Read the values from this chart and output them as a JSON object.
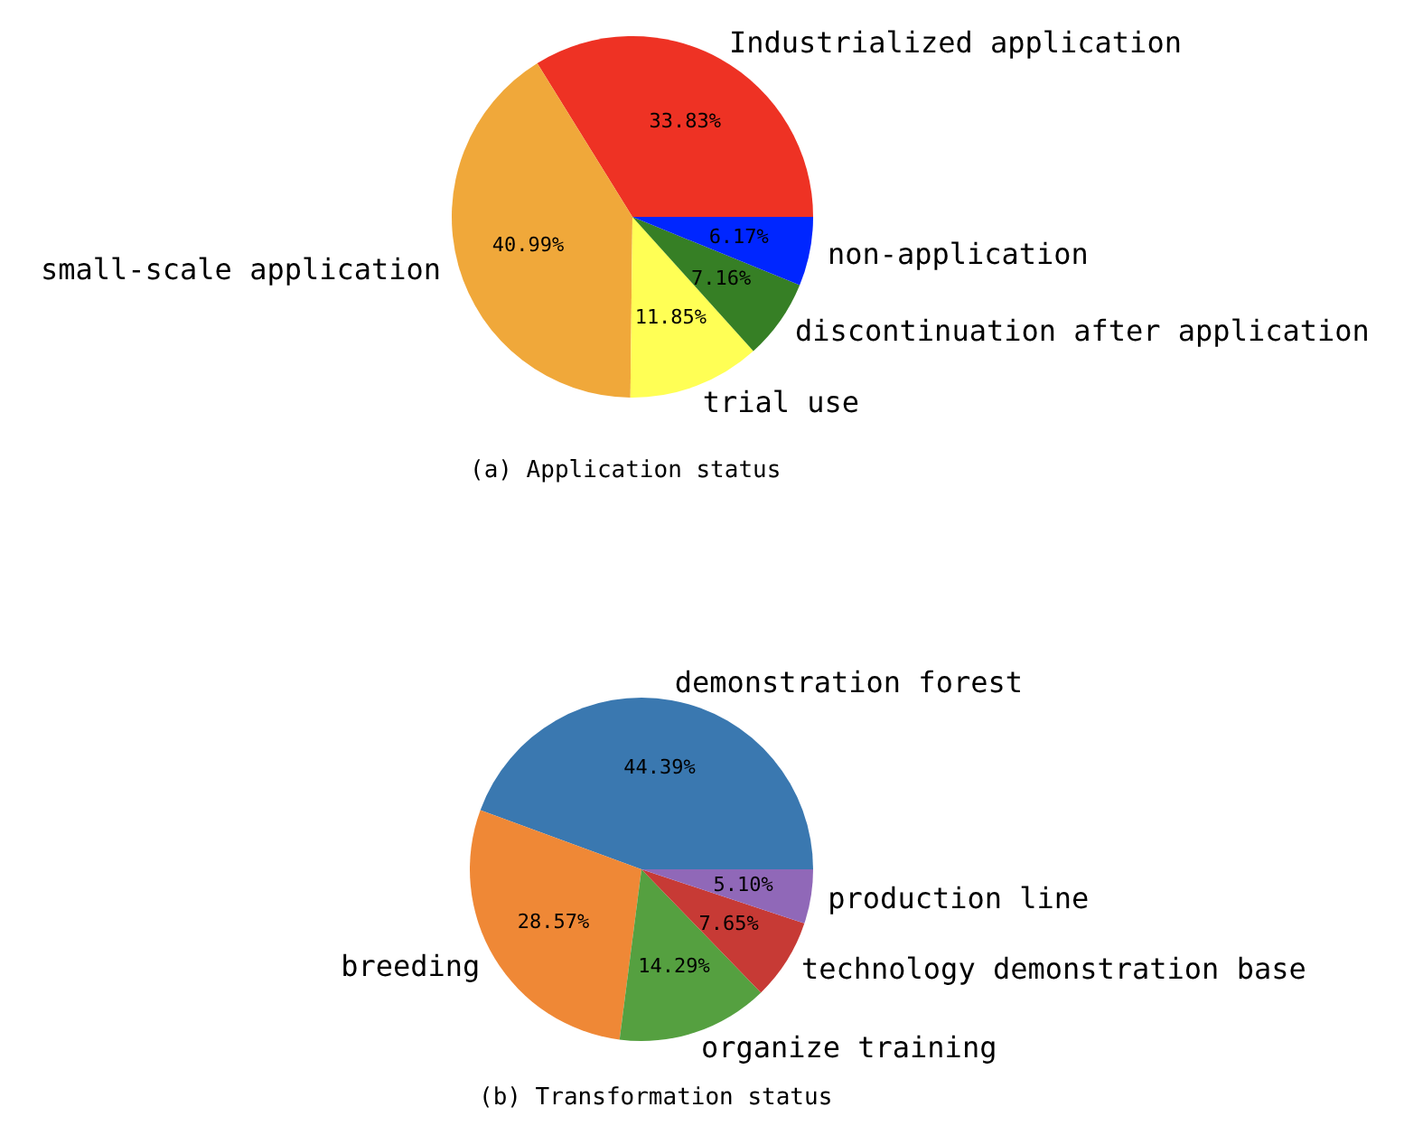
{
  "chart_data": [
    {
      "type": "pie",
      "title": "(a) Application status",
      "categories": [
        "Industrialized application",
        "small-scale application",
        "trial use",
        "discontinuation after application",
        "non-application"
      ],
      "values": [
        33.83,
        40.99,
        11.85,
        7.16,
        6.17
      ],
      "colors": [
        "#ee3224",
        "#f0a83a",
        "#ffff55",
        "#367f25",
        "#0026ff"
      ],
      "value_labels": [
        "33.83%",
        "40.99%",
        "11.85%",
        "7.16%",
        "6.17%"
      ]
    },
    {
      "type": "pie",
      "title": "(b) Transformation status",
      "categories": [
        "demonstration forest",
        "breeding",
        "organize training",
        "technology demonstration base",
        "production line"
      ],
      "values": [
        44.39,
        28.57,
        14.29,
        7.65,
        5.1
      ],
      "colors": [
        "#3a78b0",
        "#ef8836",
        "#55a040",
        "#c73a35",
        "#9068b8"
      ],
      "value_labels": [
        "44.39%",
        "28.57%",
        "14.29%",
        "7.65%",
        "5.10%"
      ]
    }
  ]
}
